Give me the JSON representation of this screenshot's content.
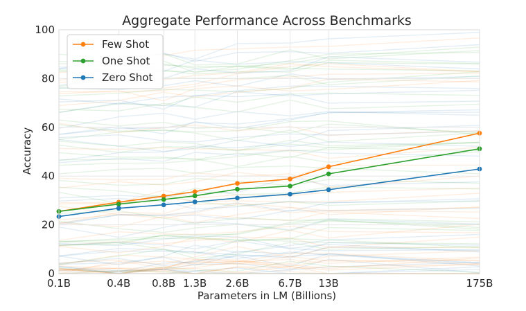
{
  "chart_data": {
    "type": "line",
    "title": "Aggregate Performance Across Benchmarks",
    "xlabel": "Parameters in LM (Billions)",
    "ylabel": "Accuracy",
    "categories": [
      "0.1B",
      "0.4B",
      "0.8B",
      "1.3B",
      "2.6B",
      "6.7B",
      "13B",
      "175B"
    ],
    "x_values": [
      0.125,
      0.35,
      0.76,
      1.3,
      2.7,
      6.7,
      13,
      175
    ],
    "x_scale": "log",
    "ylim": [
      0,
      100
    ],
    "yticks": [
      0,
      20,
      40,
      60,
      80,
      100
    ],
    "grid": true,
    "legend_position": "top-left",
    "series": [
      {
        "name": "Few Shot",
        "color": "#ff7f0e",
        "values": [
          25.5,
          29.3,
          31.8,
          33.6,
          37.0,
          38.8,
          43.8,
          57.6
        ]
      },
      {
        "name": "One Shot",
        "color": "#2ca02c",
        "values": [
          25.5,
          28.5,
          30.4,
          31.9,
          34.6,
          35.9,
          40.9,
          51.2
        ]
      },
      {
        "name": "Zero Shot",
        "color": "#1f77b4",
        "values": [
          23.4,
          26.8,
          28.2,
          29.4,
          31.0,
          32.6,
          34.4,
          42.9
        ]
      }
    ]
  }
}
